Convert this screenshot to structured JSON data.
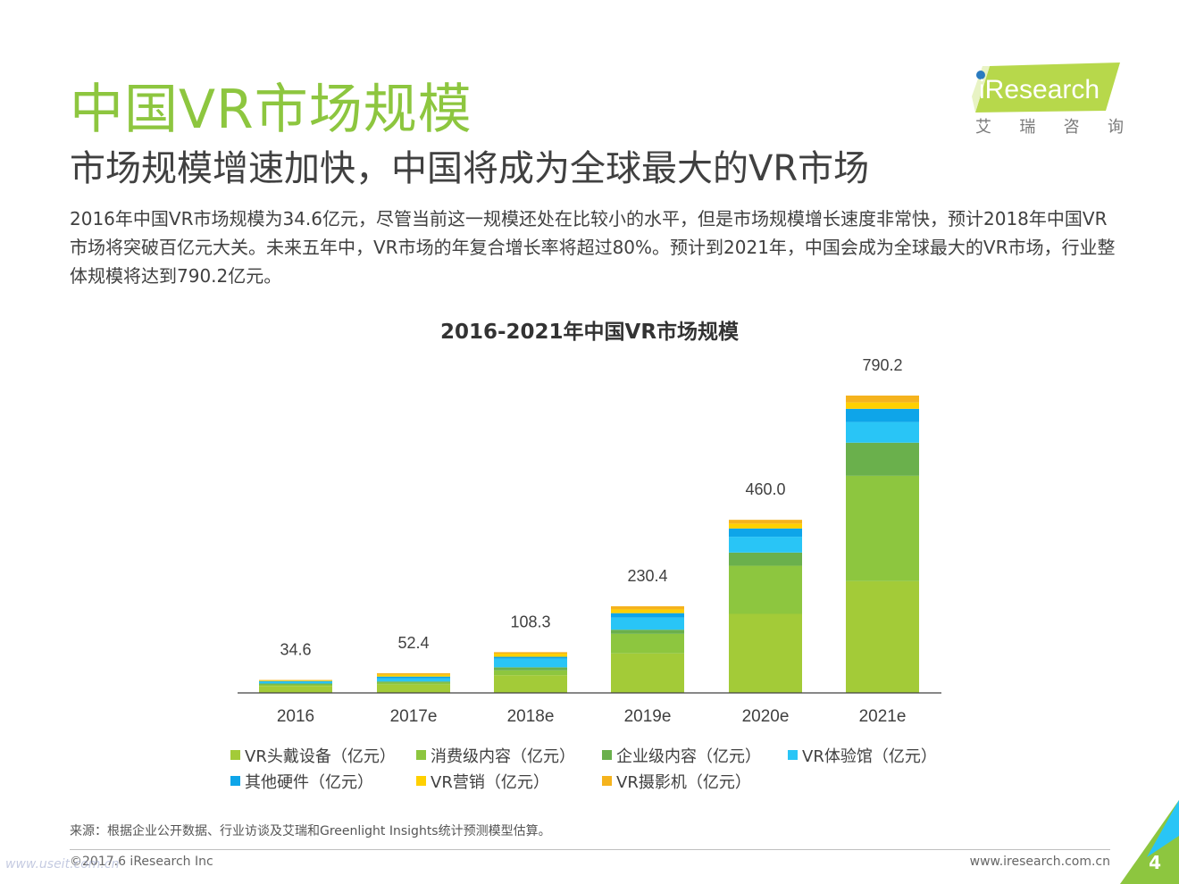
{
  "header": {
    "title": "中国VR市场规模",
    "subtitle": "市场规模增速加快，中国将成为全球最大的VR市场",
    "description": "2016年中国VR市场规模为34.6亿元，尽管当前这一规模还处在比较小的水平，但是市场规模增长速度非常快，预计2018年中国VR市场将突破百亿元大关。未来五年中，VR市场的年复合增长率将超过80%。预计到2021年，中国会成为全球最大的VR市场，行业整体规模将达到790.2亿元。"
  },
  "logo": {
    "brand": "iResearch",
    "cn_chars": [
      "艾",
      "瑞",
      "咨",
      "询"
    ],
    "color": "#8dc63f"
  },
  "chart_data": {
    "type": "bar",
    "stacked": true,
    "title": "2016-2021年中国VR市场规模",
    "categories": [
      "2016",
      "2017e",
      "2018e",
      "2019e",
      "2020e",
      "2021e"
    ],
    "totals": [
      34.6,
      52.4,
      108.3,
      230.4,
      460.0,
      790.2
    ],
    "total_labels": [
      "34.6",
      "52.4",
      "108.3",
      "230.4",
      "460.0",
      "790.2"
    ],
    "ylim": [
      0,
      850
    ],
    "series": [
      {
        "name": "VR头戴设备（亿元）",
        "color": "#a3cb38",
        "values": [
          18.5,
          22.0,
          47.0,
          105.0,
          210.0,
          297.0
        ]
      },
      {
        "name": "消费级内容（亿元）",
        "color": "#8dc63f",
        "values": [
          4.0,
          5.4,
          13.0,
          52.0,
          128.0,
          280.0
        ]
      },
      {
        "name": "企业级内容（亿元）",
        "color": "#6ab04c",
        "values": [
          2.5,
          3.0,
          8.0,
          11.0,
          35.0,
          88.0
        ]
      },
      {
        "name": "VR体验馆（亿元）",
        "color": "#29c5f6",
        "values": [
          4.5,
          8.0,
          23.0,
          32.0,
          42.0,
          55.0
        ]
      },
      {
        "name": "其他硬件（亿元）",
        "color": "#0ea5e9",
        "values": [
          2.0,
          5.0,
          5.0,
          12.0,
          22.0,
          35.0
        ]
      },
      {
        "name": "VR营销（亿元）",
        "color": "#ffd000",
        "values": [
          2.0,
          5.0,
          8.3,
          10.0,
          13.0,
          17.0
        ]
      },
      {
        "name": "VR摄影机（亿元）",
        "color": "#f5b31d",
        "values": [
          1.1,
          4.0,
          4.0,
          8.4,
          10.0,
          18.2
        ]
      }
    ]
  },
  "footer": {
    "source": "来源：根据企业公开数据、行业访谈及艾瑞和Greenlight Insights统计预测模型估算。",
    "copyright": "©2017.6 iResearch Inc",
    "website": "www.iresearch.com.cn",
    "page_number": "4",
    "watermark": "www.useit.com.cn"
  }
}
